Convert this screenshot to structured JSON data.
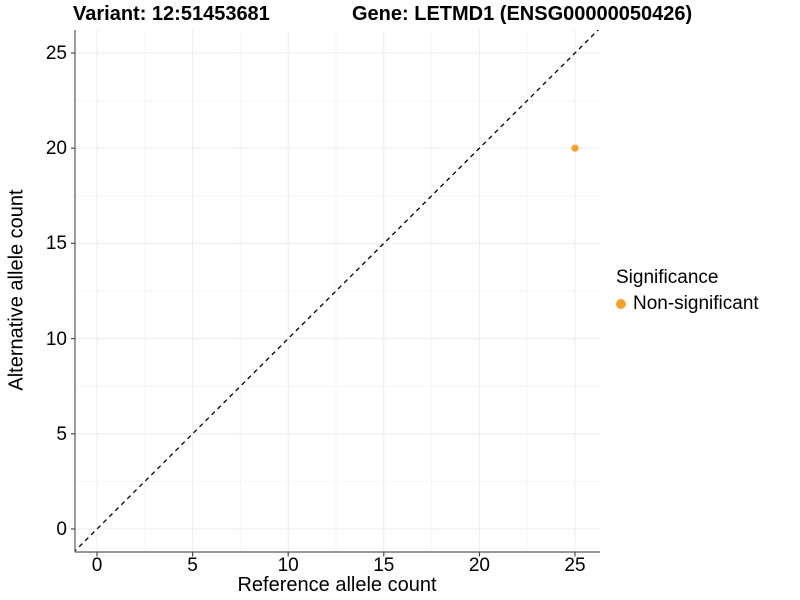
{
  "chart_data": {
    "type": "scatter",
    "title_variant": "Variant: 12:51453681",
    "title_gene": "Gene: LETMD1 (ENSG00000050426)",
    "xlabel": "Reference allele count",
    "ylabel": "Alternative allele count",
    "xlim": [
      -1.25,
      26.25
    ],
    "ylim": [
      -1.25,
      26.25
    ],
    "xticks": [
      0,
      5,
      10,
      15,
      20,
      25
    ],
    "yticks": [
      0,
      5,
      10,
      15,
      20,
      25
    ],
    "grid": true,
    "minor_grid": true,
    "identity_line": {
      "style": "dashed",
      "slope": 1,
      "intercept": 0,
      "color": "#000000"
    },
    "points": [
      {
        "x": 25,
        "y": 20,
        "series": "Non-significant",
        "color": "#F9A02B"
      }
    ],
    "legend": {
      "title": "Significance",
      "position": "right",
      "items": [
        {
          "label": "Non-significant",
          "color": "#F9A02B"
        }
      ]
    },
    "colors": {
      "background": "#FFFFFF",
      "grid_major": "#EDEDED",
      "grid_minor": "#F5F5F5",
      "axis_line": "#595959",
      "tick_mark": "#4D4D4D",
      "text": "#000000",
      "point": "#F9A02B"
    }
  }
}
